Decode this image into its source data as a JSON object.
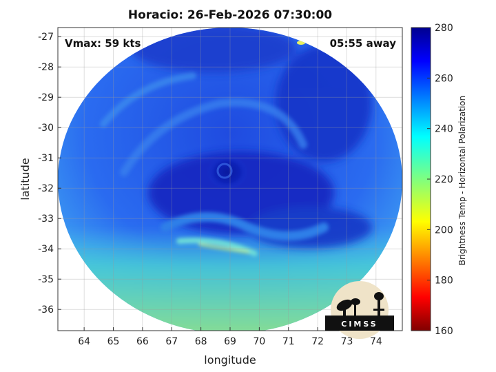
{
  "figure": {
    "title": "Horacio: 26-Feb-2026 07:30:00",
    "vmax_label": "Vmax: 59 kts",
    "time_away_label": "05:55 away",
    "logo_text": "CIMSS"
  },
  "axes": {
    "xlabel": "longitude",
    "ylabel": "latitude",
    "x_ticks": [
      "64",
      "65",
      "66",
      "67",
      "68",
      "69",
      "70",
      "71",
      "72",
      "73",
      "74"
    ],
    "y_ticks": [
      "-27",
      "-28",
      "-29",
      "-30",
      "-31",
      "-32",
      "-33",
      "-34",
      "-35",
      "-36"
    ],
    "xlim": [
      63.1,
      74.9
    ],
    "ylim": [
      -36.7,
      -26.7
    ],
    "grid": true
  },
  "colorbar": {
    "label": "Brightness Temp - Horizontal Polarization",
    "ticks": [
      "280",
      "260",
      "240",
      "220",
      "200",
      "180",
      "160"
    ],
    "range": [
      160,
      280
    ],
    "colormap": "jet"
  },
  "storm": {
    "center_lon": 68.8,
    "center_lat": -31.9
  }
}
